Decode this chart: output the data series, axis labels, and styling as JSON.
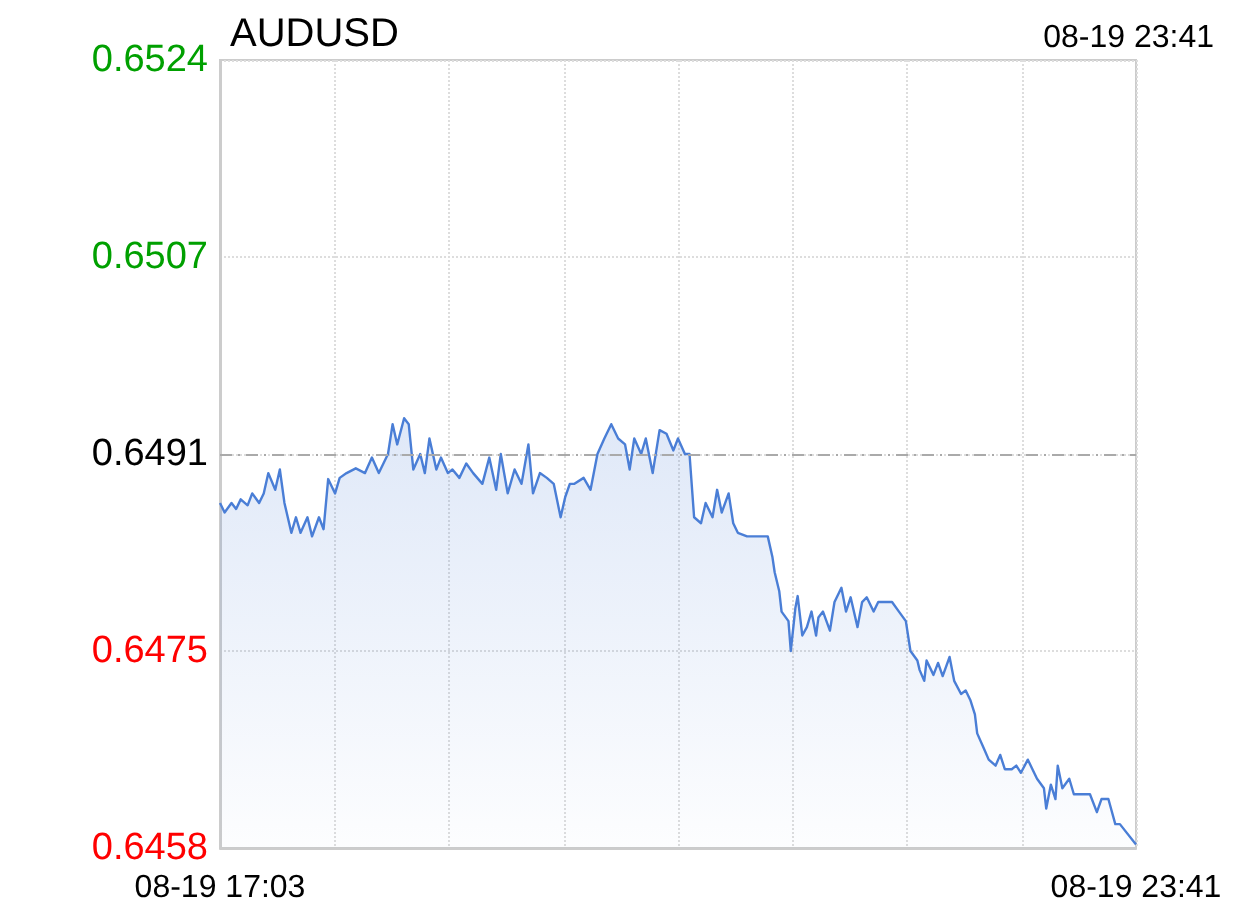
{
  "chart_data": {
    "type": "area",
    "title": "AUDUSD",
    "subtitle": "08-19 23:41",
    "x": [
      "--08-19T17:03",
      "--08-19T17:05",
      "--08-19T17:08",
      "--08-19T17:10",
      "--08-19T17:12",
      "--08-19T17:15",
      "--08-19T17:17",
      "--08-19T17:20",
      "--08-19T17:22",
      "--08-19T17:24",
      "--08-19T17:27",
      "--08-19T17:29",
      "--08-19T17:31",
      "--08-19T17:34",
      "--08-19T17:36",
      "--08-19T17:38",
      "--08-19T17:41",
      "--08-19T17:43",
      "--08-19T17:46",
      "--08-19T17:48",
      "--08-19T17:50",
      "--08-19T17:53",
      "--08-19T17:55",
      "--08-19T17:58",
      "--08-19T18:02",
      "--08-19T18:06",
      "--08-19T18:09",
      "--08-19T18:12",
      "--08-19T18:16",
      "--08-19T18:18",
      "--08-19T18:20",
      "--08-19T18:23",
      "--08-19T18:25",
      "--08-19T18:27",
      "--08-19T18:30",
      "--08-19T18:32",
      "--08-19T18:34",
      "--08-19T18:37",
      "--08-19T18:39",
      "--08-19T18:42",
      "--08-19T18:44",
      "--08-19T18:47",
      "--08-19T18:50",
      "--08-19T18:53",
      "--08-19T18:57",
      "--08-19T19:00",
      "--08-19T19:03",
      "--08-19T19:05",
      "--08-19T19:08",
      "--08-19T19:11",
      "--08-19T19:14",
      "--08-19T19:17",
      "--08-19T19:19",
      "--08-19T19:22",
      "--08-19T19:25",
      "--08-19T19:28",
      "--08-19T19:31",
      "--08-19T19:33",
      "--08-19T19:35",
      "--08-19T19:37",
      "--08-19T19:41",
      "--08-19T19:44",
      "--08-19T19:47",
      "--08-19T19:50",
      "--08-19T19:53",
      "--08-19T19:56",
      "--08-19T19:59",
      "--08-19T20:01",
      "--08-19T20:03",
      "--08-19T20:06",
      "--08-19T20:08",
      "--08-19T20:11",
      "--08-19T20:14",
      "--08-19T20:17",
      "--08-19T20:20",
      "--08-19T20:22",
      "--08-19T20:25",
      "--08-19T20:27",
      "--08-19T20:29",
      "--08-19T20:32",
      "--08-19T20:34",
      "--08-19T20:37",
      "--08-19T20:39",
      "--08-19T20:41",
      "--08-19T20:44",
      "--08-19T20:46",
      "--08-19T20:48",
      "--08-19T20:52",
      "--08-19T20:58",
      "--08-19T21:01",
      "--08-19T21:03",
      "--08-19T21:04",
      "--08-19T21:06",
      "--08-19T21:07",
      "--08-19T21:10",
      "--08-19T21:11",
      "--08-19T21:13",
      "--08-19T21:14",
      "--08-19T21:16",
      "--08-19T21:18",
      "--08-19T21:20",
      "--08-19T21:22",
      "--08-19T21:23",
      "--08-19T21:25",
      "--08-19T21:28",
      "--08-19T21:30",
      "--08-19T21:33",
      "--08-19T21:35",
      "--08-19T21:37",
      "--08-19T21:40",
      "--08-19T21:42",
      "--08-19T21:44",
      "--08-19T21:47",
      "--08-19T21:49",
      "--08-19T21:51",
      "--08-19T21:55",
      "--08-19T21:58",
      "--08-19T22:01",
      "--08-19T22:03",
      "--08-19T22:06",
      "--08-19T22:07",
      "--08-19T22:09",
      "--08-19T22:10",
      "--08-19T22:13",
      "--08-19T22:15",
      "--08-19T22:17",
      "--08-19T22:20",
      "--08-19T22:22",
      "--08-19T22:25",
      "--08-19T22:27",
      "--08-19T22:29",
      "--08-19T22:31",
      "--08-19T22:32",
      "--08-19T22:35",
      "--08-19T22:37",
      "--08-19T22:40",
      "--08-19T22:42",
      "--08-19T22:44",
      "--08-19T22:47",
      "--08-19T22:49",
      "--08-19T22:51",
      "--08-19T22:54",
      "--08-19T22:56",
      "--08-19T22:58",
      "--08-19T23:01",
      "--08-19T23:02",
      "--08-19T23:04",
      "--08-19T23:06",
      "--08-19T23:07",
      "--08-19T23:09",
      "--08-19T23:12",
      "--08-19T23:14",
      "--08-19T23:17",
      "--08-19T23:21",
      "--08-19T23:24",
      "--08-19T23:26",
      "--08-19T23:29",
      "--08-19T23:32",
      "--08-19T23:34",
      "--08-19T23:41"
    ],
    "series": [
      {
        "color": "#4a7ed6",
        "values": [
          0.64869,
          0.64861,
          0.64869,
          0.64864,
          0.64872,
          0.64867,
          0.64877,
          0.64869,
          0.64877,
          0.64894,
          0.6488,
          0.64897,
          0.64869,
          0.64844,
          0.64857,
          0.64844,
          0.64857,
          0.64841,
          0.64857,
          0.64847,
          0.64889,
          0.64877,
          0.6489,
          0.64894,
          0.64898,
          0.64894,
          0.64907,
          0.64894,
          0.6491,
          0.64935,
          0.64918,
          0.6494,
          0.64935,
          0.64897,
          0.6491,
          0.64894,
          0.64923,
          0.64897,
          0.64907,
          0.64894,
          0.64897,
          0.6489,
          0.64902,
          0.64894,
          0.64885,
          0.64907,
          0.6488,
          0.6491,
          0.64877,
          0.64897,
          0.64885,
          0.64918,
          0.64877,
          0.64894,
          0.6489,
          0.64885,
          0.64857,
          0.64874,
          0.64885,
          0.64885,
          0.6489,
          0.6488,
          0.6491,
          0.64923,
          0.64935,
          0.64923,
          0.64918,
          0.64897,
          0.64923,
          0.6491,
          0.64923,
          0.64894,
          0.6493,
          0.64927,
          0.64913,
          0.64923,
          0.6491,
          0.6491,
          0.64857,
          0.64852,
          0.64869,
          0.64857,
          0.6488,
          0.64861,
          0.64877,
          0.64852,
          0.64844,
          0.64841,
          0.64841,
          0.64841,
          0.64824,
          0.64811,
          0.64795,
          0.64778,
          0.6477,
          0.64745,
          0.64781,
          0.64791,
          0.64758,
          0.64765,
          0.64778,
          0.64758,
          0.64773,
          0.64778,
          0.64762,
          0.64786,
          0.64798,
          0.64778,
          0.6479,
          0.64765,
          0.64786,
          0.6479,
          0.64778,
          0.64786,
          0.64786,
          0.64786,
          0.64778,
          0.6477,
          0.64745,
          0.64737,
          0.64729,
          0.6472,
          0.64737,
          0.64725,
          0.64735,
          0.64724,
          0.6474,
          0.6472,
          0.64709,
          0.64712,
          0.64704,
          0.64692,
          0.64676,
          0.64663,
          0.64654,
          0.64649,
          0.64658,
          0.64646,
          0.64646,
          0.64649,
          0.64643,
          0.64654,
          0.64646,
          0.64638,
          0.6463,
          0.64613,
          0.64633,
          0.64621,
          0.64649,
          0.6463,
          0.64638,
          0.64625,
          0.64625,
          0.64625,
          0.6461,
          0.64621,
          0.64621,
          0.646,
          0.646,
          0.64583
        ]
      }
    ],
    "xlim": [
      "--08-19T17:03",
      "--08-19T23:41"
    ],
    "xticks": [
      {
        "value": "--08-19T17:03",
        "label": "08-19 17:03"
      },
      {
        "value": "--08-19T17:52:45",
        "label": null
      },
      {
        "value": "--08-19T18:42:30",
        "label": null
      },
      {
        "value": "--08-19T19:32:15",
        "label": null
      },
      {
        "value": "--08-19T20:22",
        "label": null
      },
      {
        "value": "--08-19T21:11:45",
        "label": null
      },
      {
        "value": "--08-19T22:01:30",
        "label": null
      },
      {
        "value": "--08-19T22:51:15",
        "label": null
      },
      {
        "value": "--08-19T23:41",
        "label": "08-19 23:41"
      }
    ],
    "ylim": [
      0.6458,
      0.6524
    ],
    "yticks": [
      0.6458,
      {
        "value": 0.64745,
        "label": "0.6475"
      },
      0.6491,
      {
        "value": 0.65075,
        "label": "0.6507"
      },
      0.6524
    ],
    "ref_lines": [
      {
        "axis": "y",
        "value": 0.6491,
        "color": "#aaaaaa",
        "line_style": "dashed"
      }
    ],
    "grid": true,
    "marker": "none"
  }
}
